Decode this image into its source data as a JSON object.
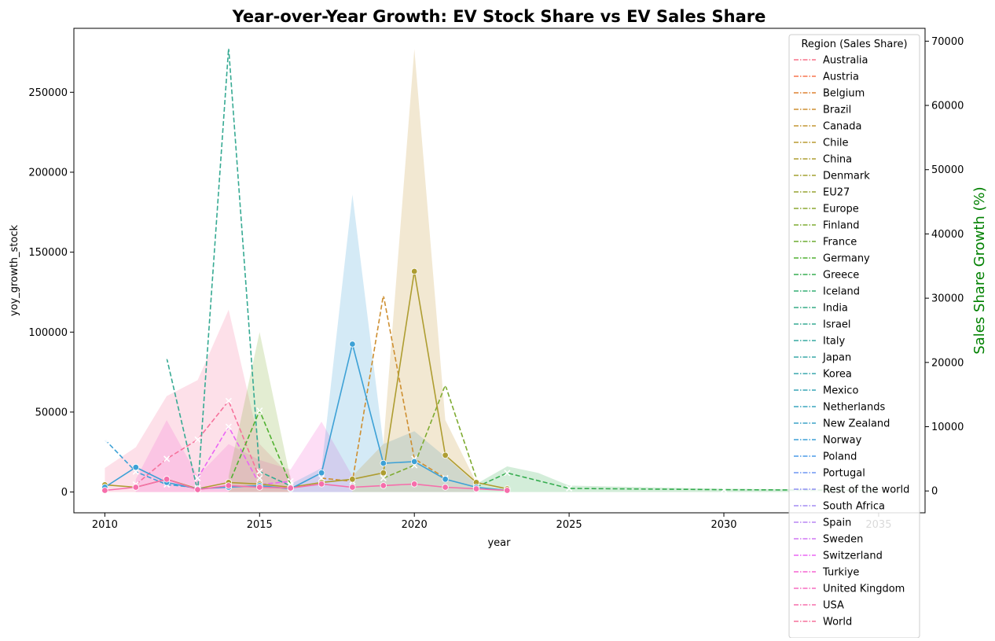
{
  "chart_data": {
    "type": "line",
    "title": "Year-over-Year Growth: EV Stock Share vs EV Sales Share",
    "xlabel": "year",
    "ylabel_left": "yoy_growth_stock",
    "ylabel_right": "Sales Share Growth (%)",
    "xlim": [
      2009,
      2036.5
    ],
    "ylim_left": [
      -13000,
      290000
    ],
    "ylim_right": [
      -3400,
      72000
    ],
    "x_ticks": [
      2010,
      2015,
      2020,
      2025,
      2030,
      2035
    ],
    "x_tick_labels": [
      "2010",
      "2015",
      "2020",
      "2025",
      "2030",
      "2035"
    ],
    "y_left_ticks": [
      0,
      50000,
      100000,
      150000,
      200000,
      250000
    ],
    "y_left_tick_labels": [
      "0",
      "50000",
      "100000",
      "150000",
      "200000",
      "250000"
    ],
    "y_right_ticks": [
      0,
      10000,
      20000,
      30000,
      40000,
      50000,
      60000,
      70000
    ],
    "y_right_tick_labels": [
      "0",
      "10000",
      "20000",
      "30000",
      "40000",
      "50000",
      "60000",
      "70000"
    ],
    "grid": false,
    "legend": {
      "title": "Region (Sales Share)",
      "placement": "top-right",
      "entries": [
        "Australia",
        "Austria",
        "Belgium",
        "Brazil",
        "Canada",
        "Chile",
        "China",
        "Denmark",
        "EU27",
        "Europe",
        "Finland",
        "France",
        "Germany",
        "Greece",
        "Iceland",
        "India",
        "Israel",
        "Italy",
        "Japan",
        "Korea",
        "Mexico",
        "Netherlands",
        "New Zealand",
        "Norway",
        "Poland",
        "Portugal",
        "Rest of the world",
        "South Africa",
        "Spain",
        "Sweden",
        "Switzerland",
        "Turkiye",
        "United Kingdom",
        "USA",
        "World"
      ],
      "colors": [
        "#f77189",
        "#f7754f",
        "#dd8232",
        "#ce8f31",
        "#c39532",
        "#b89a31",
        "#ae9d31",
        "#a4a031",
        "#97a431",
        "#8ba731",
        "#7eab31",
        "#6bac31",
        "#50b131",
        "#36ad50",
        "#34ae74",
        "#35ac85",
        "#36aa93",
        "#37a8a0",
        "#38a8a7",
        "#38a7ae",
        "#39a6b5",
        "#3aa5bd",
        "#3ca3c8",
        "#3da1d6",
        "#4c9ce8",
        "#6f96f3",
        "#8e8df4",
        "#a38bf4",
        "#b985f4",
        "#d177f4",
        "#ea66f4",
        "#f563d2",
        "#f66bc0",
        "#f66eab",
        "#f6719b"
      ]
    },
    "stock_series": [
      {
        "color": "#ae9d31",
        "x": [
          2010,
          2011,
          2012,
          2013,
          2014,
          2015,
          2016,
          2017,
          2018,
          2019,
          2020,
          2021,
          2022,
          2023
        ],
        "y": [
          4500,
          3000,
          8000,
          2000,
          6000,
          5000,
          3000,
          6000,
          8000,
          12000,
          138000,
          23000,
          6000,
          2000
        ]
      },
      {
        "color": "#3da1d6",
        "x": [
          2010,
          2011,
          2012,
          2013,
          2014,
          2015,
          2016,
          2017,
          2018,
          2019,
          2020,
          2021,
          2022,
          2023
        ],
        "y": [
          3000,
          15500,
          6000,
          2000,
          3000,
          4000,
          2000,
          12000,
          92500,
          18000,
          19000,
          8000,
          3000,
          1000
        ]
      },
      {
        "color": "#f66eab",
        "x": [
          2010,
          2011,
          2012,
          2013,
          2014,
          2015,
          2016,
          2017,
          2018,
          2019,
          2020,
          2021,
          2022,
          2023
        ],
        "y": [
          1000,
          3000,
          8000,
          1500,
          4000,
          3000,
          2500,
          5000,
          3000,
          4000,
          5000,
          3000,
          2000,
          1000
        ]
      }
    ],
    "stock_ci_bands": [
      {
        "color": "#f6719b",
        "x": [
          2010,
          2011,
          2012,
          2013,
          2014,
          2015,
          2016
        ],
        "upper": [
          15000,
          28000,
          60000,
          70000,
          114000,
          30000,
          10000
        ],
        "lower": [
          0,
          0,
          0,
          0,
          0,
          0,
          0
        ]
      },
      {
        "color": "#f563d2",
        "x": [
          2011,
          2012,
          2013,
          2014,
          2015,
          2016,
          2017,
          2018
        ],
        "upper": [
          8000,
          45000,
          10000,
          30000,
          20000,
          14000,
          44000,
          10000
        ],
        "lower": [
          0,
          0,
          0,
          0,
          0,
          0,
          0,
          0
        ]
      },
      {
        "color": "#3da1d6",
        "x": [
          2016,
          2017,
          2018,
          2019,
          2020,
          2021,
          2022
        ],
        "upper": [
          5000,
          15000,
          186000,
          30000,
          38000,
          22000,
          5000
        ],
        "lower": [
          0,
          0,
          0,
          0,
          0,
          0,
          0
        ]
      },
      {
        "color": "#c39532",
        "x": [
          2018,
          2019,
          2020,
          2021,
          2022
        ],
        "upper": [
          10000,
          30000,
          277000,
          45000,
          6000
        ],
        "lower": [
          0,
          0,
          0,
          0,
          0
        ]
      },
      {
        "color": "#7eab31",
        "x": [
          2014,
          2015,
          2016
        ],
        "upper": [
          10000,
          100000,
          8000
        ],
        "lower": [
          0,
          0,
          0
        ]
      },
      {
        "color": "#36ad50",
        "x": [
          2022,
          2023,
          2024,
          2025,
          2030,
          2035
        ],
        "upper": [
          5000,
          16000,
          12000,
          4000,
          2000,
          1500
        ],
        "lower": [
          0,
          0,
          0,
          0,
          0,
          0
        ]
      }
    ],
    "sales_series": [
      {
        "color": "#36aa93",
        "x": [
          2012,
          2013,
          2014,
          2015,
          2016
        ],
        "y": [
          20700,
          0,
          69000,
          3000,
          800
        ]
      },
      {
        "color": "#3da1d6",
        "x": [
          2010,
          2011,
          2012,
          2013
        ],
        "y": [
          8000,
          3000,
          1000,
          500
        ]
      },
      {
        "color": "#ce8f31",
        "x": [
          2017,
          2018,
          2019,
          2020,
          2021
        ],
        "y": [
          2000,
          1500,
          30500,
          5000,
          2000
        ]
      },
      {
        "color": "#7eab31",
        "x": [
          2019,
          2020,
          2021,
          2022
        ],
        "y": [
          2000,
          4000,
          16500,
          2000
        ]
      },
      {
        "color": "#ea66f4",
        "x": [
          2013,
          2014,
          2015,
          2016
        ],
        "y": [
          2000,
          10000,
          1000,
          1500
        ]
      },
      {
        "color": "#f6719b",
        "x": [
          2011,
          2012,
          2013,
          2014,
          2015
        ],
        "y": [
          1000,
          5000,
          8000,
          14000,
          2000
        ]
      },
      {
        "color": "#50b131",
        "x": [
          2014,
          2015,
          2016
        ],
        "y": [
          1000,
          12500,
          1000
        ]
      },
      {
        "color": "#36ad50",
        "x": [
          2022,
          2023,
          2025,
          2030,
          2035
        ],
        "y": [
          600,
          2800,
          400,
          200,
          100
        ]
      }
    ]
  }
}
